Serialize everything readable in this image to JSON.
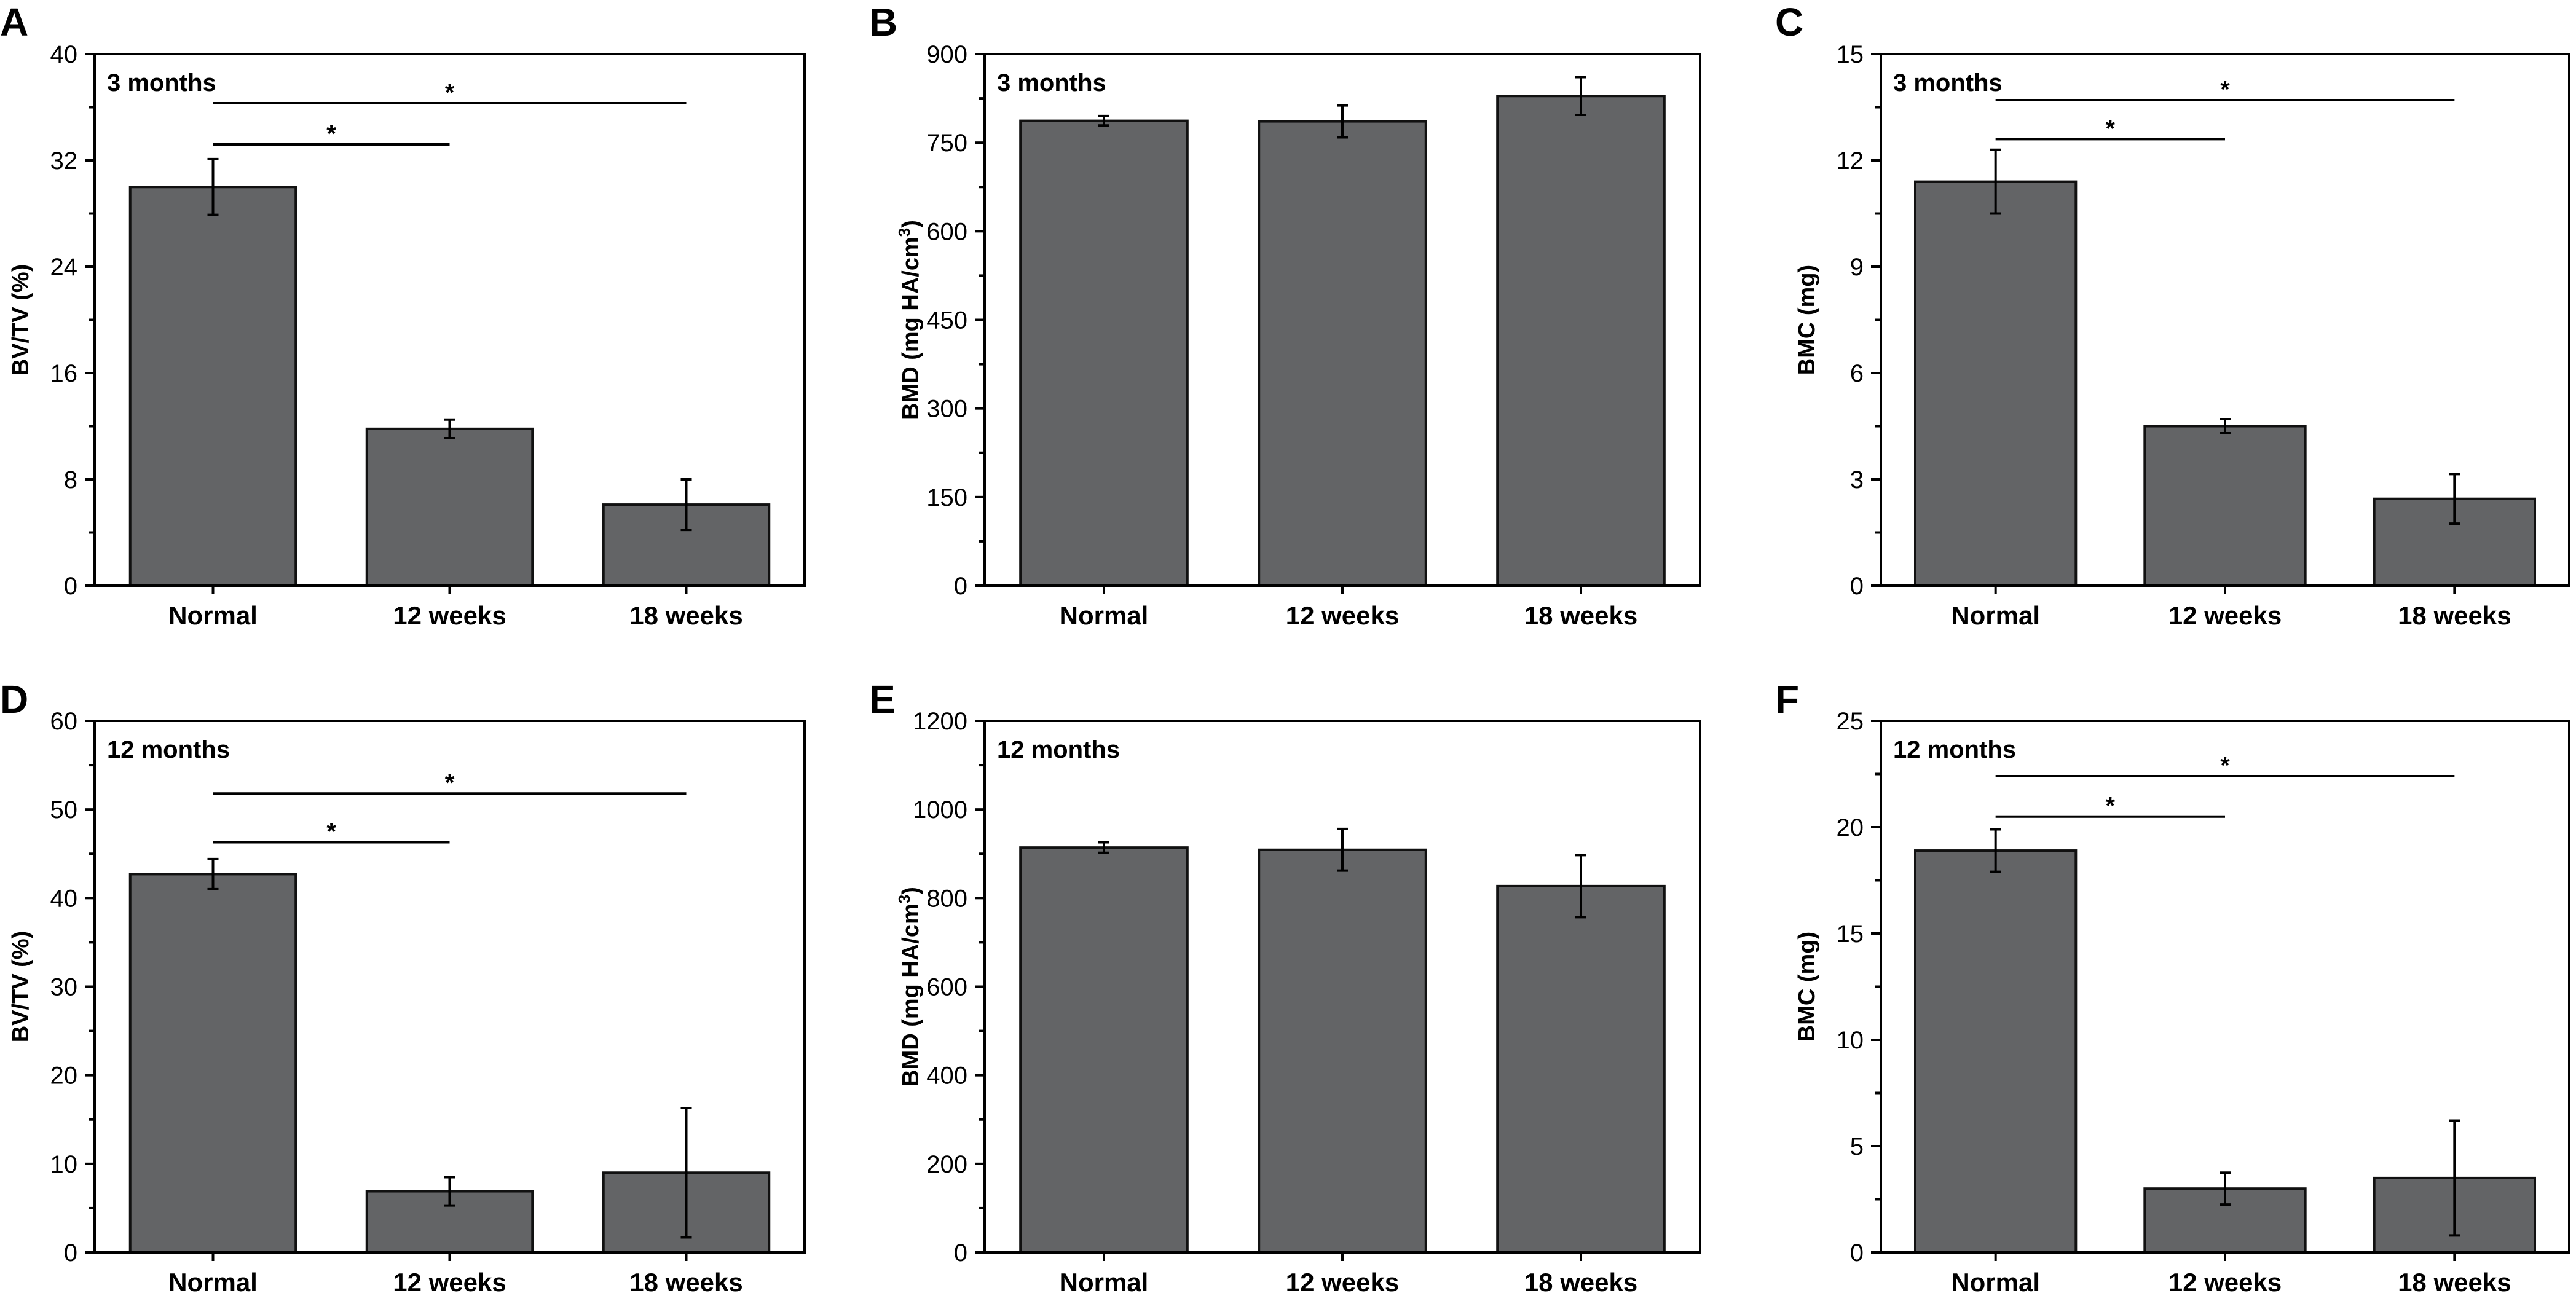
{
  "bar_color": "#636466",
  "chart_data": [
    {
      "panel": "A",
      "type": "bar",
      "annotation": "3 months",
      "ylabel": "BV/TV (%)",
      "ylabel_sup": "",
      "ylabel_after": "",
      "categories": [
        "Normal",
        "12 weeks",
        "18 weeks"
      ],
      "values": [
        30,
        11.8,
        6.1
      ],
      "errors": [
        2.1,
        0.7,
        1.9
      ],
      "ylim": [
        0,
        40
      ],
      "yticks": [
        0,
        8,
        16,
        24,
        32,
        40
      ],
      "significance": [
        {
          "from": 0,
          "to": 1,
          "y": 33.2,
          "label": "*"
        },
        {
          "from": 0,
          "to": 2,
          "y": 36.3,
          "label": "*"
        }
      ]
    },
    {
      "panel": "B",
      "type": "bar",
      "annotation": "3 months",
      "ylabel": "BMD (mg HA/cm",
      "ylabel_sup": "3",
      "ylabel_after": ")",
      "categories": [
        "Normal",
        "12 weeks",
        "18 weeks"
      ],
      "values": [
        787,
        786,
        829
      ],
      "errors": [
        8,
        27,
        32
      ],
      "ylim": [
        0,
        900
      ],
      "yticks": [
        0,
        150,
        300,
        450,
        600,
        750,
        900
      ],
      "significance": []
    },
    {
      "panel": "C",
      "type": "bar",
      "annotation": "3 months",
      "ylabel": "BMC (mg)",
      "ylabel_sup": "",
      "ylabel_after": "",
      "categories": [
        "Normal",
        "12 weeks",
        "18 weeks"
      ],
      "values": [
        11.4,
        4.5,
        2.45
      ],
      "errors": [
        0.9,
        0.2,
        0.7
      ],
      "ylim": [
        0,
        15
      ],
      "yticks": [
        0,
        3,
        6,
        9,
        12,
        15
      ],
      "significance": [
        {
          "from": 0,
          "to": 1,
          "y": 12.6,
          "label": "*"
        },
        {
          "from": 0,
          "to": 2,
          "y": 13.7,
          "label": "*"
        }
      ]
    },
    {
      "panel": "D",
      "type": "bar",
      "annotation": "12 months",
      "ylabel": "BV/TV (%)",
      "ylabel_sup": "",
      "ylabel_after": "",
      "categories": [
        "Normal",
        "12 weeks",
        "18 weeks"
      ],
      "values": [
        42.7,
        6.9,
        9.0
      ],
      "errors": [
        1.7,
        1.6,
        7.3
      ],
      "ylim": [
        0,
        60
      ],
      "yticks": [
        0,
        10,
        20,
        30,
        40,
        50,
        60
      ],
      "significance": [
        {
          "from": 0,
          "to": 1,
          "y": 46.3,
          "label": "*"
        },
        {
          "from": 0,
          "to": 2,
          "y": 51.8,
          "label": "*"
        }
      ]
    },
    {
      "panel": "E",
      "type": "bar",
      "annotation": "12 months",
      "ylabel": "BMD (mg HA/cm",
      "ylabel_sup": "3",
      "ylabel_after": ")",
      "categories": [
        "Normal",
        "12 weeks",
        "18 weeks"
      ],
      "values": [
        914,
        909,
        827
      ],
      "errors": [
        12,
        47,
        70
      ],
      "ylim": [
        0,
        1200
      ],
      "yticks": [
        0,
        200,
        400,
        600,
        800,
        1000,
        1200
      ],
      "significance": []
    },
    {
      "panel": "F",
      "type": "bar",
      "annotation": "12 months",
      "ylabel": "BMC (mg)",
      "ylabel_sup": "",
      "ylabel_after": "",
      "categories": [
        "Normal",
        "12 weeks",
        "18 weeks"
      ],
      "values": [
        18.9,
        3.0,
        3.5
      ],
      "errors": [
        1.0,
        0.75,
        2.7
      ],
      "ylim": [
        0,
        25
      ],
      "yticks": [
        0,
        5,
        10,
        15,
        20,
        25
      ],
      "significance": [
        {
          "from": 0,
          "to": 1,
          "y": 20.5,
          "label": "*"
        },
        {
          "from": 0,
          "to": 2,
          "y": 22.4,
          "label": "*"
        }
      ]
    }
  ]
}
